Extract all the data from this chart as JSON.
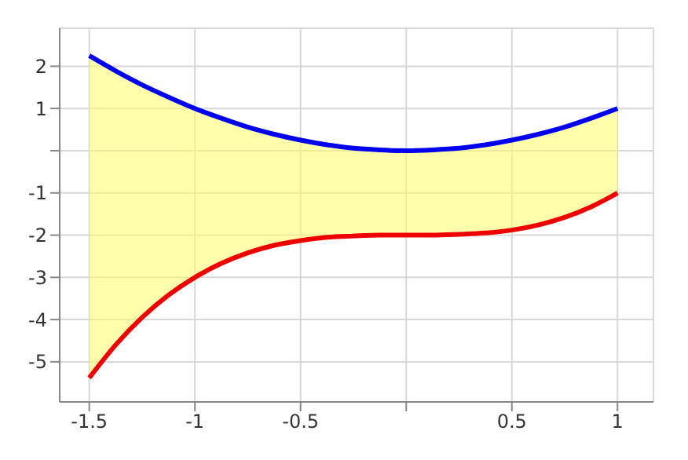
{
  "chart_data": {
    "type": "line",
    "x": [
      -1.5,
      -1.375,
      -1.25,
      -1.125,
      -1,
      -0.875,
      -0.75,
      -0.625,
      -0.5,
      -0.375,
      -0.25,
      -0.125,
      0,
      0.125,
      0.25,
      0.375,
      0.5,
      0.625,
      0.75,
      0.875,
      1
    ],
    "series": [
      {
        "color": "#0000ee",
        "values": [
          2.25,
          1.89,
          1.56,
          1.27,
          1,
          0.77,
          0.56,
          0.39,
          0.25,
          0.14,
          0.06,
          0.02,
          0,
          0.02,
          0.06,
          0.14,
          0.25,
          0.39,
          0.56,
          0.77,
          1
        ],
        "lower": [
          -5.38,
          -4.6,
          -3.95,
          -3.42,
          -3,
          -2.67,
          -2.42,
          -2.24,
          -2.13,
          -2.05,
          -2.02,
          -2,
          -2,
          -2,
          -1.98,
          -1.95,
          -1.88,
          -1.76,
          -1.58,
          -1.33,
          -1
        ],
        "upper": [
          2.25,
          1.89,
          1.56,
          1.27,
          1,
          0.77,
          0.56,
          0.39,
          0.25,
          0.14,
          0.06,
          0.02,
          0,
          0.02,
          0.06,
          0.14,
          0.25,
          0.39,
          0.56,
          0.77,
          1
        ]
      },
      {
        "color": "#ee0000",
        "values": [
          -5.38,
          -4.6,
          -3.95,
          -3.42,
          -3,
          -2.67,
          -2.42,
          -2.24,
          -2.13,
          -2.05,
          -2.02,
          -2,
          -2,
          -2,
          -1.98,
          -1.95,
          -1.88,
          -1.76,
          -1.58,
          -1.33,
          -1
        ]
      }
    ],
    "xlim": [
      -1.64,
      1.17
    ],
    "xticks": [
      -1.5,
      -1,
      -0.5,
      {
        "value": 0,
        "label": null
      },
      0.5,
      1
    ],
    "ylim": [
      -5.95,
      2.9
    ],
    "yticks": [
      -5,
      -4,
      -3,
      -2,
      -1,
      {
        "value": 0,
        "label": null
      },
      1,
      2
    ],
    "grid": true,
    "marker": "none"
  }
}
